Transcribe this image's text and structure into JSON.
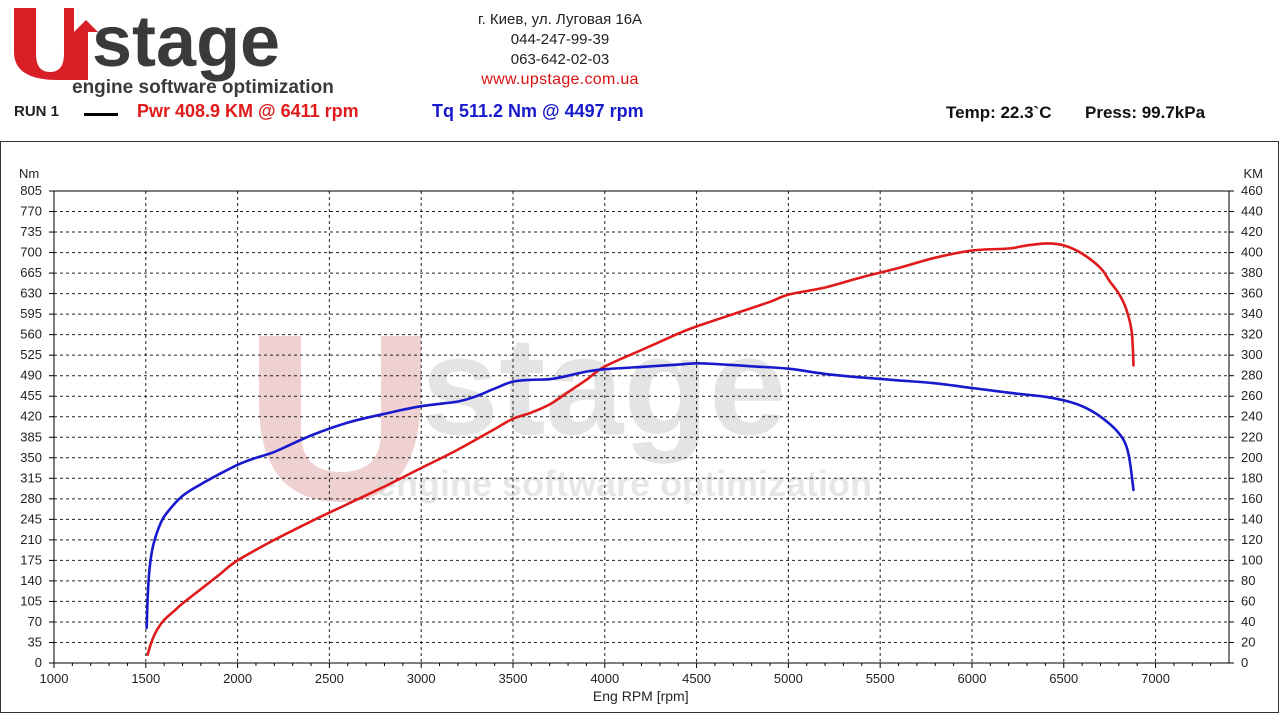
{
  "header": {
    "logo_text": "stage",
    "logo_subtitle": "engine software optimization",
    "address": "г. Киев, ул. Луговая 16А",
    "phone1": "044-247-99-39",
    "phone2": "063-642-02-03",
    "website": "www.upstage.com.ua"
  },
  "run": {
    "label": "RUN 1",
    "power_summary": "Pwr  408.9 KM @ 6411 rpm",
    "torque_summary": "Tq 511.2 Nm @ 4497 rpm",
    "temp": "Temp: 22.3`C",
    "press": "Press: 99.7kPa"
  },
  "colors": {
    "power": "#e01a1a",
    "torque": "#1818cc",
    "watermark": "#e8b8b8"
  },
  "chart_data": {
    "type": "line",
    "title": "",
    "xlabel": "Eng RPM [rpm]",
    "ylabel_left": "Nm",
    "ylabel_right": "KM",
    "xlim": [
      1000,
      7400
    ],
    "ylim_left": [
      0,
      805
    ],
    "ylim_right": [
      0,
      460
    ],
    "x_ticks": [
      1000,
      1500,
      2000,
      2500,
      3000,
      3500,
      4000,
      4500,
      5000,
      5500,
      6000,
      6500,
      7000
    ],
    "y_ticks_left": [
      0,
      35,
      70,
      105,
      140,
      175,
      210,
      245,
      280,
      315,
      350,
      385,
      420,
      455,
      490,
      525,
      560,
      595,
      630,
      665,
      700,
      735,
      770,
      805
    ],
    "y_ticks_right": [
      0,
      20,
      40,
      60,
      80,
      100,
      120,
      140,
      160,
      180,
      200,
      220,
      240,
      260,
      280,
      300,
      320,
      340,
      360,
      380,
      400,
      420,
      440,
      460
    ],
    "grid": true,
    "watermark_text": "stage",
    "watermark_subtitle": "engine software optimization",
    "series": [
      {
        "name": "Pwr",
        "axis": "right",
        "color": "#e01a1a",
        "x": [
          1510,
          1530,
          1560,
          1600,
          1650,
          1700,
          1800,
          1900,
          2000,
          2200,
          2400,
          2600,
          2800,
          3000,
          3200,
          3400,
          3500,
          3600,
          3700,
          3800,
          3900,
          4000,
          4200,
          4400,
          4500,
          4700,
          4900,
          5000,
          5200,
          5400,
          5600,
          5800,
          6000,
          6200,
          6300,
          6411,
          6500,
          6600,
          6700,
          6750,
          6800,
          6840,
          6870,
          6880
        ],
        "y": [
          8,
          20,
          32,
          42,
          50,
          58,
          72,
          86,
          100,
          120,
          138,
          155,
          172,
          190,
          208,
          228,
          238,
          244,
          252,
          264,
          276,
          289,
          305,
          321,
          328,
          340,
          352,
          359,
          366,
          376,
          385,
          395,
          402,
          404,
          407,
          408.9,
          407,
          399,
          385,
          372,
          360,
          345,
          323,
          290
        ]
      },
      {
        "name": "Tq",
        "axis": "left",
        "color": "#1818cc",
        "x": [
          1505,
          1510,
          1520,
          1540,
          1580,
          1620,
          1700,
          1800,
          1900,
          2000,
          2100,
          2200,
          2400,
          2600,
          2800,
          3000,
          3200,
          3300,
          3400,
          3500,
          3600,
          3700,
          3800,
          3900,
          4000,
          4200,
          4400,
          4497,
          4600,
          4800,
          5000,
          5200,
          5400,
          5600,
          5800,
          6000,
          6200,
          6400,
          6500,
          6600,
          6700,
          6800,
          6850,
          6880
        ],
        "y": [
          60,
          110,
          160,
          200,
          238,
          258,
          285,
          305,
          322,
          338,
          350,
          360,
          388,
          410,
          425,
          438,
          446,
          455,
          468,
          480,
          483,
          484,
          490,
          497,
          501,
          505,
          509,
          511.2,
          510,
          506,
          502,
          493,
          487,
          482,
          477,
          469,
          461,
          454,
          448,
          438,
          420,
          392,
          360,
          295
        ]
      }
    ]
  }
}
